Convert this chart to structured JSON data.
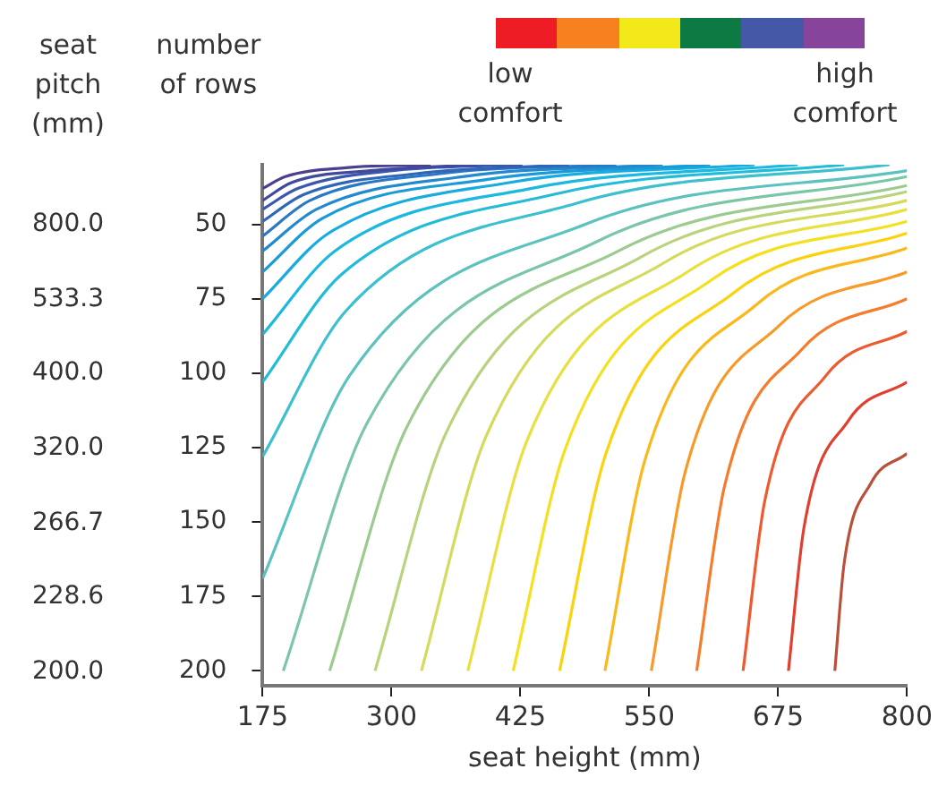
{
  "chart_data": {
    "type": "line",
    "xlabel": "seat height (mm)",
    "ylabel": "number of rows",
    "annotations": [
      "low comfort",
      "high comfort",
      "seat pitch (mm)",
      "800.0",
      "533.3",
      "400.0",
      "320.0",
      "266.7",
      "228.6",
      "200.0"
    ],
    "xlim": [
      175,
      800
    ],
    "xticks": [
      175,
      300,
      425,
      550,
      675,
      800
    ],
    "ylim": [
      205,
      30
    ],
    "yticks": [
      50,
      75,
      100,
      125,
      150,
      175,
      200
    ],
    "marker": "none",
    "legend": false,
    "series": [
      {
        "color": "#4b3f8f",
        "x": [
          175,
          197,
          256,
          338
        ],
        "values": [
          38,
          34,
          31,
          30
        ]
      },
      {
        "color": "#3f4a9e",
        "x": [
          175,
          203,
          279,
          383
        ],
        "values": [
          42,
          36,
          32,
          30
        ]
      },
      {
        "color": "#3a56ad",
        "x": [
          175,
          209,
          301,
          427
        ],
        "values": [
          45,
          38,
          32,
          30
        ]
      },
      {
        "color": "#2f66b8",
        "x": [
          175,
          215,
          324,
          472
        ],
        "values": [
          49,
          40,
          33,
          30
        ]
      },
      {
        "color": "#2a78c4",
        "x": [
          175,
          221,
          347,
          518
        ],
        "values": [
          54,
          42,
          33,
          30
        ]
      },
      {
        "color": "#2289cf",
        "x": [
          175,
          227,
          369,
          563
        ],
        "values": [
          59,
          45,
          34,
          30
        ]
      },
      {
        "color": "#1b9ad8",
        "x": [
          175,
          233,
          392,
          609
        ],
        "values": [
          66,
          48,
          35,
          30
        ]
      },
      {
        "color": "#17acdf",
        "x": [
          175,
          239,
          414,
          652
        ],
        "values": [
          75,
          53,
          36,
          30
        ]
      },
      {
        "color": "#1bb8e0",
        "x": [
          175,
          245,
          435,
          694
        ],
        "values": [
          87,
          59,
          38,
          30
        ]
      },
      {
        "color": "#22bcd8",
        "x": [
          175,
          251,
          457,
          739
        ],
        "values": [
          103,
          67,
          40,
          30
        ]
      },
      {
        "color": "#3cbfcf",
        "x": [
          175,
          256,
          479,
          783
        ],
        "values": [
          128,
          79,
          43,
          30
        ]
      },
      {
        "color": "#5cc2c0",
        "x": [
          175,
          259,
          488,
          800
        ],
        "values": [
          169,
          101,
          50,
          32
        ]
      },
      {
        "color": "#7cc6a8",
        "x": [
          195,
          276,
          498,
          800
        ],
        "values": [
          200,
          117,
          56,
          34
        ]
      },
      {
        "color": "#9ccb90",
        "x": [
          240,
          315,
          520,
          800
        ],
        "values": [
          200,
          118,
          59,
          37
        ]
      },
      {
        "color": "#b9d27c",
        "x": [
          284,
          353,
          542,
          800
        ],
        "values": [
          200,
          120,
          61,
          39
        ]
      },
      {
        "color": "#d4da5c",
        "x": [
          329,
          392,
          564,
          800
        ],
        "values": [
          200,
          121,
          63,
          42
        ]
      },
      {
        "color": "#e8e040",
        "x": [
          374,
          431,
          587,
          800
        ],
        "values": [
          200,
          123,
          66,
          45
        ]
      },
      {
        "color": "#f5e020",
        "x": [
          418,
          469,
          609,
          800
        ],
        "values": [
          200,
          125,
          69,
          49
        ]
      },
      {
        "color": "#fcd20f",
        "x": [
          463,
          508,
          632,
          800
        ],
        "values": [
          200,
          127,
          73,
          53
        ]
      },
      {
        "color": "#fbb81a",
        "x": [
          507,
          546,
          654,
          800
        ],
        "values": [
          200,
          129,
          77,
          58
        ]
      },
      {
        "color": "#f89a28",
        "x": [
          552,
          585,
          676,
          800
        ],
        "values": [
          200,
          133,
          84,
          66
        ]
      },
      {
        "color": "#f47c2c",
        "x": [
          596,
          623,
          698,
          800
        ],
        "values": [
          200,
          138,
          92,
          75
        ]
      },
      {
        "color": "#ee5a30",
        "x": [
          641,
          662,
          721,
          800
        ],
        "values": [
          200,
          143,
          101,
          86
        ]
      },
      {
        "color": "#e0402f",
        "x": [
          685,
          700,
          743,
          800
        ],
        "values": [
          200,
          152,
          116,
          103
        ]
      },
      {
        "color": "#b8503a",
        "x": [
          730,
          739,
          765,
          800
        ],
        "values": [
          200,
          164,
          137,
          127
        ]
      }
    ]
  }
}
